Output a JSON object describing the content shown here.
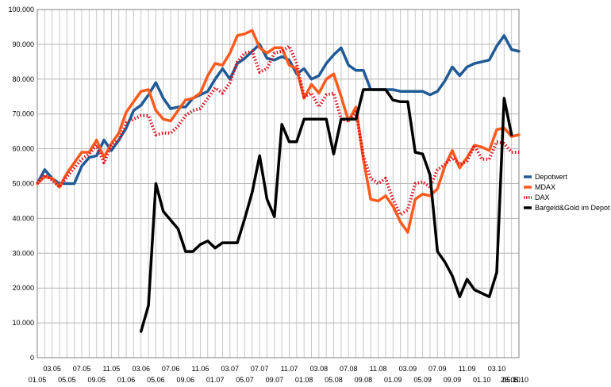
{
  "chart_data": {
    "type": "line",
    "title": "",
    "xlabel": "",
    "ylabel": "",
    "ylim": [
      0,
      100000
    ],
    "grid": true,
    "legend_position": "right",
    "y_ticks": [
      "0",
      "10.000",
      "20.000",
      "30.000",
      "40.000",
      "50.000",
      "60.000",
      "70.000",
      "80.000",
      "90.000",
      "100.000"
    ],
    "x_tick_labels_top": [
      "03.05",
      "07.05",
      "11.05",
      "03.06",
      "07.06",
      "11.06",
      "03.07",
      "07.07",
      "11.07",
      "03.08",
      "07.08",
      "11.08",
      "03.09",
      "07.09",
      "11.09",
      "03.10"
    ],
    "x_tick_labels_bottom": [
      "01.05",
      "05.05",
      "09.05",
      "01.06",
      "05.06",
      "09.06",
      "01.07",
      "05.07",
      "09.07",
      "01.08",
      "05.08",
      "09.08",
      "01.09",
      "05.09",
      "09.09",
      "01.10",
      "05.10"
    ],
    "x_tick_label_end": "26.05.10",
    "series": [
      {
        "name": "Depotwert",
        "color": "#1f5a96",
        "dash": "solid",
        "values": [
          50000,
          54000,
          51500,
          50000,
          50000,
          50000,
          55000,
          57500,
          58000,
          62500,
          59500,
          62500,
          66000,
          71000,
          72500,
          75500,
          79000,
          74500,
          71500,
          72000,
          72000,
          74500,
          75500,
          76500,
          80000,
          83000,
          80000,
          84500,
          86000,
          88000,
          90000,
          86000,
          85500,
          86500,
          85500,
          81500,
          83000,
          80000,
          81000,
          84500,
          87000,
          89000,
          84000,
          82500,
          82500,
          77000,
          77000,
          77000,
          77000,
          76500,
          76500,
          76500,
          76500,
          75500,
          76500,
          79500,
          83500,
          81000,
          83500,
          84500,
          85000,
          85500,
          89500,
          92500,
          88500,
          88000
        ]
      },
      {
        "name": "MDAX",
        "color": "#ff5a1e",
        "dash": "solid",
        "values": [
          50000,
          52000,
          51500,
          49000,
          53000,
          56000,
          59000,
          59000,
          62500,
          57500,
          61500,
          64500,
          70500,
          73500,
          76500,
          77000,
          71000,
          68500,
          68000,
          71000,
          74000,
          74500,
          76000,
          81000,
          84500,
          84000,
          87500,
          92500,
          93000,
          94000,
          89000,
          87500,
          89000,
          89000,
          84000,
          83000,
          74500,
          78500,
          76000,
          80000,
          81500,
          75000,
          68000,
          72000,
          57000,
          45500,
          45000,
          46500,
          43500,
          39000,
          36000,
          45500,
          47000,
          46500,
          48500,
          55000,
          59500,
          54500,
          57500,
          61000,
          60500,
          59500,
          65500,
          66000,
          63500,
          64000
        ]
      },
      {
        "name": "DAX",
        "color": "#e0101e",
        "dash": "dotted",
        "values": [
          50000,
          52500,
          51000,
          49000,
          52000,
          54500,
          57000,
          58500,
          61000,
          56000,
          61000,
          62500,
          67500,
          68500,
          69500,
          69500,
          64000,
          64500,
          64500,
          66500,
          69500,
          71000,
          71500,
          74500,
          77500,
          76000,
          79000,
          85000,
          87500,
          88000,
          82000,
          83000,
          87500,
          88000,
          89500,
          84500,
          75000,
          76000,
          72000,
          75500,
          76000,
          68500,
          68000,
          70500,
          58000,
          51500,
          50000,
          51500,
          45500,
          41000,
          42500,
          50000,
          50500,
          49000,
          54000,
          55500,
          57500,
          55500,
          56500,
          61000,
          57000,
          57000,
          62000,
          61500,
          59000,
          59000
        ]
      },
      {
        "name": "Bargeld&Gold im Depot",
        "color": "#000000",
        "dash": "solid",
        "segment": [
          14,
          65
        ],
        "values": [
          7500,
          15000,
          50000,
          42000,
          39500,
          37000,
          30500,
          30500,
          32500,
          33500,
          31500,
          33000,
          33000,
          33000,
          40000,
          47500,
          58000,
          45500,
          40500,
          67000,
          62000,
          62000,
          68500,
          68500,
          68500,
          68500,
          58500,
          68500,
          68500,
          68500,
          77000,
          77000,
          77000,
          77000,
          74000,
          73500,
          73500,
          59000,
          58500,
          52500,
          30500,
          27500,
          23500,
          17500,
          22500,
          19500,
          18500,
          17500,
          24500,
          74500,
          64000
        ]
      }
    ]
  }
}
